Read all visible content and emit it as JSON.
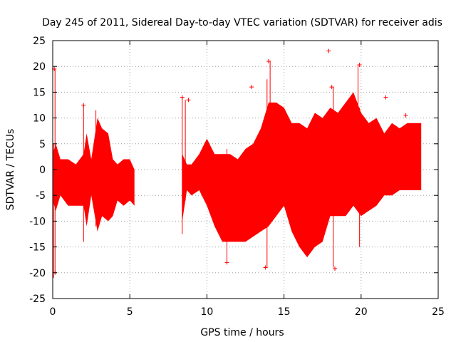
{
  "chart_data": {
    "type": "scatter",
    "title": "Day 245 of 2011, Sidereal Day-to-day VTEC variation (SDTVAR) for receiver adis",
    "xlabel": "GPS time / hours",
    "ylabel": "SDTVAR / TECUs",
    "xlim": [
      0,
      25
    ],
    "ylim": [
      -25,
      25
    ],
    "xticks": [
      "0",
      "5",
      "10",
      "15",
      "20",
      "25"
    ],
    "yticks": [
      "-25",
      "-20",
      "-15",
      "-10",
      "-5",
      "0",
      "5",
      "10",
      "15",
      "20",
      "25"
    ],
    "grid": true,
    "series": [
      {
        "name": "SDTVAR",
        "color": "#ff0000",
        "marker": "+",
        "envelope": [
          [
            0.0,
            -6,
            3
          ],
          [
            0.2,
            -8,
            5
          ],
          [
            0.5,
            -5,
            2
          ],
          [
            1.0,
            -7,
            2
          ],
          [
            1.5,
            -7,
            1
          ],
          [
            2.0,
            -7,
            3
          ],
          [
            2.2,
            -11,
            7
          ],
          [
            2.5,
            -5,
            2
          ],
          [
            2.9,
            -12,
            10
          ],
          [
            3.2,
            -9,
            8
          ],
          [
            3.6,
            -10,
            7
          ],
          [
            3.9,
            -9,
            2
          ],
          [
            4.2,
            -6,
            1
          ],
          [
            4.6,
            -7,
            2
          ],
          [
            5.0,
            -6,
            2
          ],
          [
            5.3,
            -7,
            0
          ],
          [
            8.4,
            -10,
            3
          ],
          [
            8.7,
            -4,
            1
          ],
          [
            9.0,
            -5,
            1
          ],
          [
            9.5,
            -4,
            3
          ],
          [
            10.0,
            -7,
            6
          ],
          [
            10.5,
            -11,
            3
          ],
          [
            11.0,
            -14,
            3
          ],
          [
            11.5,
            -14,
            3
          ],
          [
            12.0,
            -14,
            2
          ],
          [
            12.5,
            -14,
            4
          ],
          [
            13.0,
            -13,
            5
          ],
          [
            13.5,
            -12,
            8
          ],
          [
            14.0,
            -11,
            13
          ],
          [
            14.5,
            -9,
            13
          ],
          [
            15.0,
            -7,
            12
          ],
          [
            15.5,
            -12,
            9
          ],
          [
            16.0,
            -15,
            9
          ],
          [
            16.5,
            -17,
            8
          ],
          [
            17.0,
            -15,
            11
          ],
          [
            17.5,
            -14,
            10
          ],
          [
            18.0,
            -9,
            12
          ],
          [
            18.5,
            -9,
            11
          ],
          [
            19.0,
            -9,
            13
          ],
          [
            19.5,
            -7,
            15
          ],
          [
            20.0,
            -9,
            11
          ],
          [
            20.5,
            -8,
            9
          ],
          [
            21.0,
            -7,
            10
          ],
          [
            21.5,
            -5,
            7
          ],
          [
            22.0,
            -5,
            9
          ],
          [
            22.5,
            -4,
            8
          ],
          [
            23.0,
            -4,
            9
          ],
          [
            23.5,
            -4,
            9
          ],
          [
            23.9,
            -4,
            9
          ]
        ],
        "spikes": [
          [
            0.15,
            -20,
            19.5
          ],
          [
            0.05,
            -21,
            5
          ],
          [
            2.0,
            -14,
            12.5
          ],
          [
            2.8,
            -11,
            11.5
          ],
          [
            8.4,
            -12.5,
            14
          ],
          [
            8.6,
            -6,
            13.5
          ],
          [
            11.3,
            -18,
            4
          ],
          [
            13.9,
            -19,
            17.5
          ],
          [
            14.1,
            -9,
            21
          ],
          [
            18.2,
            -19,
            16
          ],
          [
            19.9,
            -15,
            12
          ],
          [
            19.8,
            -8,
            20.3
          ]
        ],
        "outliers": [
          [
            17.9,
            23
          ],
          [
            19.9,
            20.3
          ],
          [
            12.9,
            16
          ],
          [
            14.0,
            21
          ],
          [
            18.1,
            16
          ],
          [
            21.6,
            14
          ],
          [
            22.9,
            10.5
          ],
          [
            0.1,
            19.5
          ],
          [
            0.15,
            -20
          ],
          [
            8.4,
            14
          ],
          [
            8.8,
            13.5
          ],
          [
            13.8,
            -19
          ],
          [
            18.3,
            -19.2
          ],
          [
            11.3,
            -18
          ],
          [
            2.0,
            12.5
          ]
        ]
      }
    ]
  }
}
